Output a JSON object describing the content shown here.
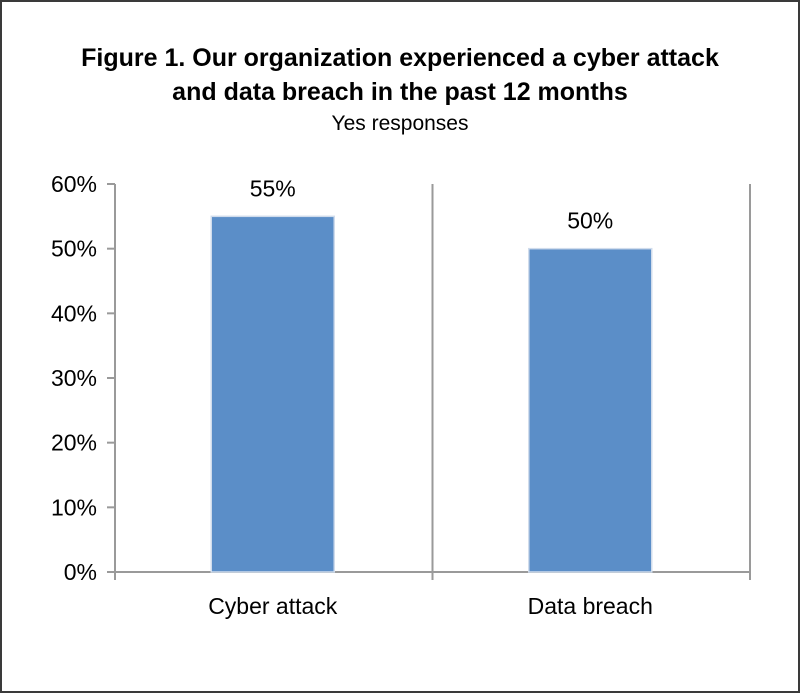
{
  "title_line1": "Figure 1. Our organization experienced a cyber attack",
  "title_line2": "and data breach in the past 12 months",
  "subtitle": "Yes responses",
  "colors": {
    "bar": "#5b8ec8",
    "axis": "#9a9a9a"
  },
  "chart_data": {
    "type": "bar",
    "categories": [
      "Cyber attack",
      "Data breach"
    ],
    "values": [
      55,
      50
    ],
    "data_labels": [
      "55%",
      "50%"
    ],
    "ylim": [
      0,
      60
    ],
    "yticks": [
      "0%",
      "10%",
      "20%",
      "30%",
      "40%",
      "50%",
      "60%"
    ],
    "xlabel": "",
    "ylabel": "",
    "grid": false
  }
}
